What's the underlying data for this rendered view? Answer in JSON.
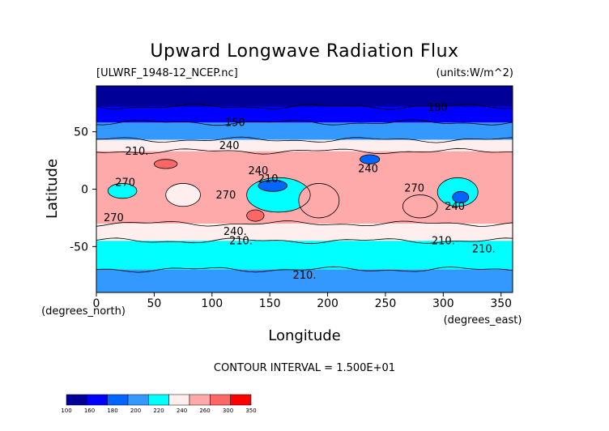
{
  "chart_data": {
    "type": "heatmap",
    "title": "Upward Longwave Radiation Flux",
    "subtitle_left": "[ULWRF_1948-12_NCEP.nc]",
    "subtitle_right": "(units:W/m^2)",
    "xlabel": "Longitude",
    "ylabel": "Latitude",
    "x_unit_label": "(degrees_east)",
    "y_unit_label": "(degrees_north)",
    "xlim": [
      0,
      360
    ],
    "ylim": [
      -90,
      90
    ],
    "x_ticks": [
      0,
      50,
      100,
      150,
      200,
      250,
      300,
      350
    ],
    "y_ticks": [
      50,
      0,
      -50
    ],
    "contour_interval_text": "CONTOUR INTERVAL = 1.500E+01",
    "contour_labels": [
      {
        "text": "150",
        "lon": 120,
        "lat": 55
      },
      {
        "text": "180",
        "lon": 295,
        "lat": 68
      },
      {
        "text": "210.",
        "lon": 35,
        "lat": 30
      },
      {
        "text": "240",
        "lon": 115,
        "lat": 35
      },
      {
        "text": "240",
        "lon": 140,
        "lat": 13
      },
      {
        "text": "240",
        "lon": 235,
        "lat": 15
      },
      {
        "text": "270",
        "lon": 25,
        "lat": 3
      },
      {
        "text": "270",
        "lon": 112,
        "lat": -8
      },
      {
        "text": "210.",
        "lon": 150,
        "lat": 6
      },
      {
        "text": "270",
        "lon": 15,
        "lat": -28
      },
      {
        "text": "270",
        "lon": 275,
        "lat": -2
      },
      {
        "text": "240",
        "lon": 310,
        "lat": -18
      },
      {
        "text": "240.",
        "lon": 120,
        "lat": -40
      },
      {
        "text": "210.",
        "lon": 125,
        "lat": -48
      },
      {
        "text": "210.",
        "lon": 300,
        "lat": -48
      },
      {
        "text": "210.",
        "lon": 335,
        "lat": -55
      },
      {
        "text": "210.",
        "lon": 180,
        "lat": -78
      }
    ],
    "colorbar": {
      "labels": [
        "100",
        "160",
        "180",
        "200",
        "220",
        "240",
        "260",
        "300",
        "350"
      ],
      "colors": [
        "#000099",
        "#0000ff",
        "#0066ff",
        "#3399ff",
        "#00ffff",
        "#ffeeee",
        "#ffaaaa",
        "#ff6666",
        "#ff0000"
      ]
    },
    "latitude_bands": [
      {
        "lat_from": 90,
        "lat_to": 72,
        "level": 150
      },
      {
        "lat_from": 72,
        "lat_to": 58,
        "level": 175
      },
      {
        "lat_from": 58,
        "lat_to": 43,
        "level": 215
      },
      {
        "lat_from": 43,
        "lat_to": 33,
        "level": 245
      },
      {
        "lat_from": 33,
        "lat_to": -30,
        "level": 270
      },
      {
        "lat_from": -30,
        "lat_to": -45,
        "level": 240
      },
      {
        "lat_from": -45,
        "lat_to": -70,
        "level": 220
      },
      {
        "lat_from": -70,
        "lat_to": -90,
        "level": 200
      }
    ],
    "regions": [
      {
        "level": 230,
        "lon_from": 130,
        "lon_to": 185,
        "lat_from": 10,
        "lat_to": -20
      },
      {
        "level": 235,
        "lon_from": 295,
        "lon_to": 330,
        "lat_from": 10,
        "lat_to": -15
      },
      {
        "level": 230,
        "lon_from": 10,
        "lon_to": 35,
        "lat_from": 5,
        "lat_to": -8
      },
      {
        "level": 195,
        "lon_from": 140,
        "lon_to": 165,
        "lat_from": 8,
        "lat_to": -2
      },
      {
        "level": 180,
        "lon_from": 228,
        "lon_to": 245,
        "lat_from": 30,
        "lat_to": 22
      },
      {
        "level": 180,
        "lon_from": 308,
        "lon_to": 322,
        "lat_from": -2,
        "lat_to": -12
      },
      {
        "level": 310,
        "lon_from": 50,
        "lon_to": 70,
        "lat_from": 26,
        "lat_to": 18
      },
      {
        "level": 300,
        "lon_from": 130,
        "lon_to": 145,
        "lat_from": -18,
        "lat_to": -28
      },
      {
        "level": 290,
        "lon_from": 175,
        "lon_to": 210,
        "lat_from": 5,
        "lat_to": -25
      },
      {
        "level": 290,
        "lon_from": 265,
        "lon_to": 295,
        "lat_from": -5,
        "lat_to": -25
      },
      {
        "level": 250,
        "lon_from": 60,
        "lon_to": 90,
        "lat_from": 5,
        "lat_to": -15
      }
    ]
  }
}
